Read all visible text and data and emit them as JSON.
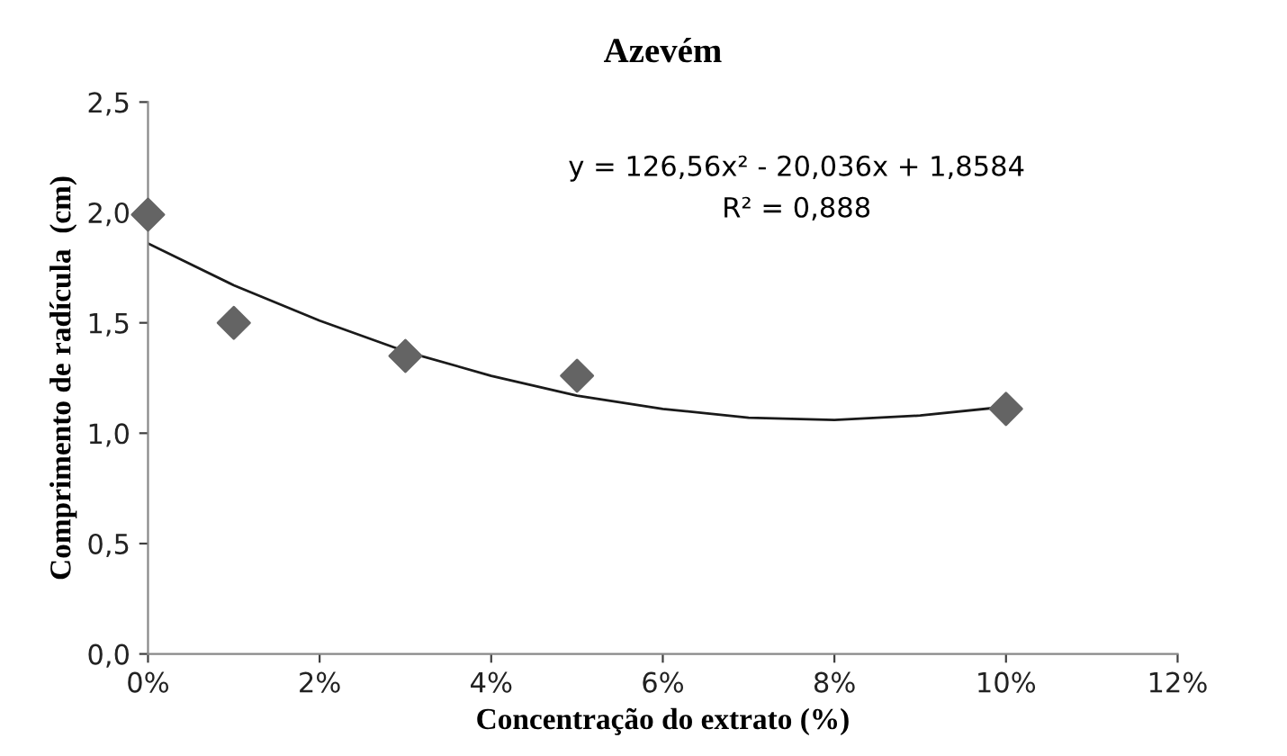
{
  "chart_data": {
    "type": "scatter",
    "title": "Azevém",
    "xlabel": "Concentração do extrato (%)",
    "ylabel": "Comprimento de radícula  (cm)",
    "series": [
      {
        "color": "#646464",
        "marker": "diamond",
        "x": [
          0,
          1,
          3,
          5,
          10
        ],
        "values": [
          1.99,
          1.5,
          1.35,
          1.26,
          1.11
        ]
      },
      {
        "type": "line",
        "color": "#1a1a1a",
        "marker": "none",
        "line_style": "solid",
        "x": [
          0,
          1,
          2,
          3,
          4,
          5,
          6,
          7,
          8,
          9,
          10
        ],
        "values": [
          1.86,
          1.67,
          1.51,
          1.37,
          1.26,
          1.17,
          1.11,
          1.07,
          1.06,
          1.08,
          1.12
        ]
      }
    ],
    "annotations": [
      "y = 126,56x² - 20,036x + 1,8584",
      "R² = 0,888"
    ],
    "xlim": [
      0,
      12
    ],
    "xticks": [
      {
        "value": 0,
        "label": "0%"
      },
      {
        "value": 2,
        "label": "2%"
      },
      {
        "value": 4,
        "label": "4%"
      },
      {
        "value": 6,
        "label": "6%"
      },
      {
        "value": 8,
        "label": "8%"
      },
      {
        "value": 10,
        "label": "10%"
      },
      {
        "value": 12,
        "label": "12%"
      }
    ],
    "ylim": [
      0,
      2.5
    ],
    "yticks": [
      {
        "value": 0,
        "label": "0,0"
      },
      {
        "value": 0.5,
        "label": "0,5"
      },
      {
        "value": 1,
        "label": "1,0"
      },
      {
        "value": 1.5,
        "label": "1,5"
      },
      {
        "value": 2,
        "label": "2,0"
      },
      {
        "value": 2.5,
        "label": "2,5"
      }
    ],
    "grid": false,
    "legend": false
  }
}
